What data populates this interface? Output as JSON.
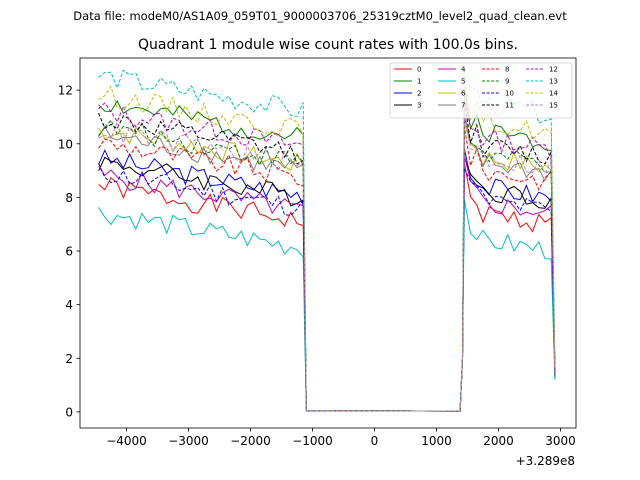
{
  "chart_data": {
    "type": "line",
    "suptitle": "Data file: modeM0/AS1A09_059T01_9000003706_25319cztM0_level2_quad_clean.evt",
    "title": "Quadrant 1 module wise count rates with 100.0s bins.",
    "xlabel": "",
    "ylabel": "",
    "x_offset_label": "+3.289e8",
    "xlim": [
      -4750,
      3250
    ],
    "ylim": [
      -0.6,
      13.2
    ],
    "x_ticks": [
      -4000,
      -3000,
      -2000,
      -1000,
      0,
      1000,
      2000,
      3000
    ],
    "x_tick_labels": [
      "−4000",
      "−3000",
      "−2000",
      "−1000",
      "0",
      "1000",
      "2000",
      "3000"
    ],
    "y_ticks": [
      0,
      2,
      4,
      6,
      8,
      10,
      12
    ],
    "y_tick_labels": [
      "0",
      "2",
      "4",
      "6",
      "8",
      "10",
      "12"
    ],
    "grid": false,
    "legend_position": "top-right",
    "segments": [
      {
        "start": -4450,
        "step": 100,
        "n": 34
      },
      {
        "start": 1450,
        "step": 100,
        "n": 15
      }
    ],
    "series": [
      {
        "name": "0",
        "color": "#ff0000",
        "dash": false,
        "level": 7.1,
        "seed": 1
      },
      {
        "name": "1",
        "color": "#008000",
        "dash": false,
        "level": 10.2,
        "seed": 2
      },
      {
        "name": "2",
        "color": "#0000ff",
        "dash": false,
        "level": 8.1,
        "seed": 3
      },
      {
        "name": "3",
        "color": "#000000",
        "dash": false,
        "level": 8.0,
        "seed": 4
      },
      {
        "name": "4",
        "color": "#bf00bf",
        "dash": false,
        "level": 7.5,
        "seed": 5
      },
      {
        "name": "5",
        "color": "#00bfbf",
        "dash": false,
        "level": 6.1,
        "seed": 6
      },
      {
        "name": "6",
        "color": "#bfbf00",
        "dash": false,
        "level": 9.2,
        "seed": 7
      },
      {
        "name": "7",
        "color": "#808080",
        "dash": false,
        "level": 9.0,
        "seed": 8
      },
      {
        "name": "8",
        "color": "#ff0000",
        "dash": true,
        "level": 8.7,
        "seed": 9
      },
      {
        "name": "9",
        "color": "#008000",
        "dash": true,
        "level": 9.3,
        "seed": 10
      },
      {
        "name": "10",
        "color": "#0000ff",
        "dash": true,
        "level": 7.6,
        "seed": 11
      },
      {
        "name": "11",
        "color": "#000000",
        "dash": true,
        "level": 9.6,
        "seed": 12
      },
      {
        "name": "12",
        "color": "#bf00bf",
        "dash": true,
        "level": 9.9,
        "seed": 13
      },
      {
        "name": "13",
        "color": "#00bfbf",
        "dash": true,
        "level": 11.2,
        "seed": 14
      },
      {
        "name": "14",
        "color": "#bfbf00",
        "dash": true,
        "level": 10.5,
        "seed": 15
      },
      {
        "name": "15",
        "color": "#bf80bf",
        "dash": true,
        "level": 9.2,
        "seed": 16
      }
    ]
  }
}
